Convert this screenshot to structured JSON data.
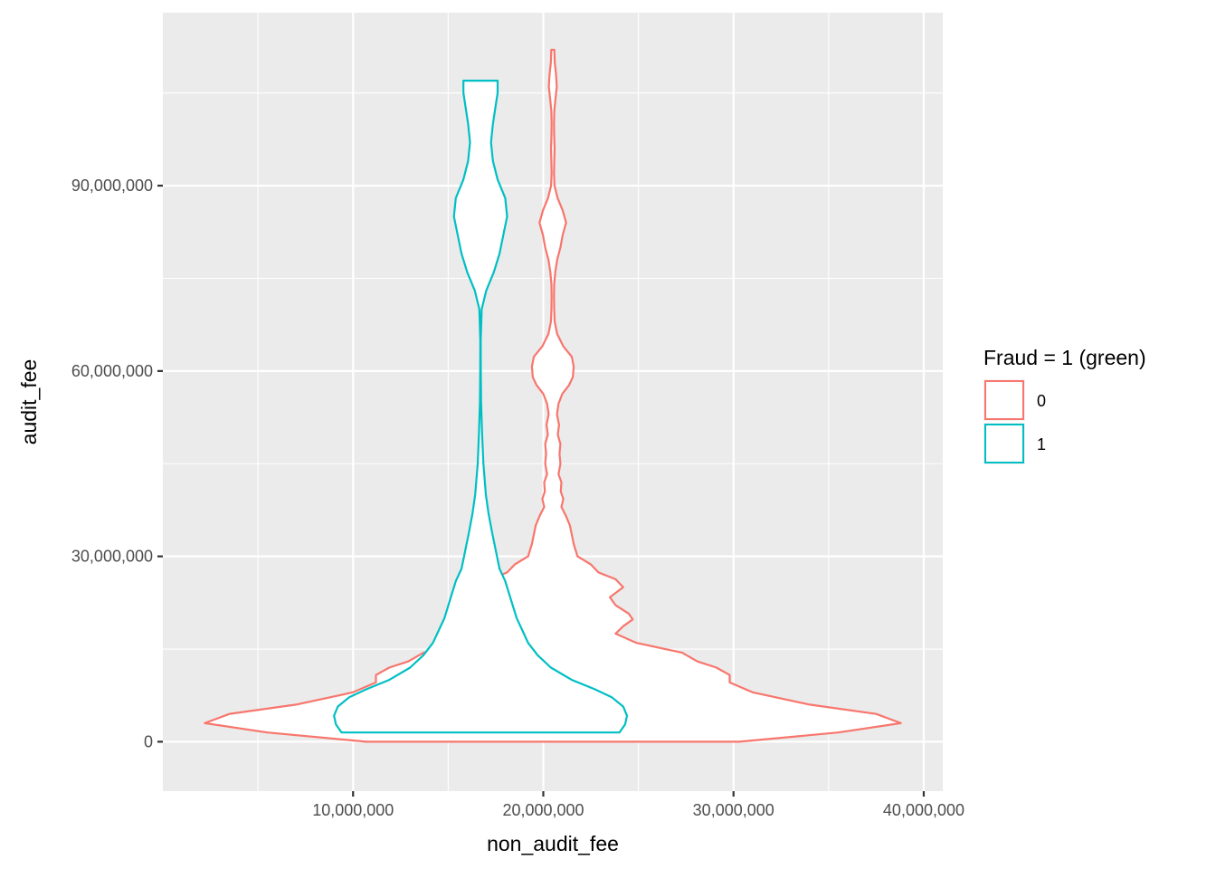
{
  "chart_data": {
    "type": "violin",
    "xlabel": "non_audit_fee",
    "ylabel": "audit_fee",
    "xlim": [
      0,
      41000000
    ],
    "ylim": [
      -8000000,
      118000000
    ],
    "x_ticks": [
      10000000,
      20000000,
      30000000,
      40000000
    ],
    "x_tick_labels": [
      "10,000,000",
      "20,000,000",
      "30,000,000",
      "40,000,000"
    ],
    "y_ticks": [
      0,
      30000000,
      60000000,
      90000000
    ],
    "y_tick_labels": [
      "0",
      "30,000,000",
      "60,000,000",
      "90,000,000"
    ],
    "grid": true,
    "legend": {
      "title": "Fraud = 1 (green)",
      "placement": "right",
      "entries": [
        {
          "label": "0",
          "color": "#F8766D"
        },
        {
          "label": "1",
          "color": "#00BFC4"
        }
      ]
    },
    "series": [
      {
        "name": "0",
        "color": "#F8766D",
        "center": 20500000,
        "profile": [
          [
            0,
            9800000
          ],
          [
            1500000,
            15000000
          ],
          [
            3000000,
            18300000
          ],
          [
            4500000,
            17000000
          ],
          [
            6000000,
            13500000
          ],
          [
            8000000,
            10500000
          ],
          [
            9600000,
            9300000
          ],
          [
            10800000,
            9300000
          ],
          [
            12000000,
            8600000
          ],
          [
            13000000,
            7600000
          ],
          [
            14400000,
            6800000
          ],
          [
            16000000,
            4400000
          ],
          [
            17500000,
            3300000
          ],
          [
            18700000,
            3700000
          ],
          [
            19800000,
            4200000
          ],
          [
            20700000,
            4000000
          ],
          [
            22100000,
            3300000
          ],
          [
            23400000,
            3000000
          ],
          [
            25000000,
            3700000
          ],
          [
            26300000,
            3300000
          ],
          [
            27400000,
            2400000
          ],
          [
            28700000,
            2000000
          ],
          [
            30000000,
            1300000
          ],
          [
            32000000,
            1100000
          ],
          [
            33500000,
            1000000
          ],
          [
            35000000,
            900000
          ],
          [
            36500000,
            700000
          ],
          [
            38000000,
            450000
          ],
          [
            39300000,
            550000
          ],
          [
            40500000,
            420000
          ],
          [
            42000000,
            450000
          ],
          [
            43300000,
            300000
          ],
          [
            45000000,
            400000
          ],
          [
            46600000,
            350000
          ],
          [
            48200000,
            400000
          ],
          [
            49700000,
            260000
          ],
          [
            51300000,
            330000
          ],
          [
            53000000,
            220000
          ],
          [
            54700000,
            300000
          ],
          [
            56300000,
            500000
          ],
          [
            57700000,
            850000
          ],
          [
            59000000,
            1050000
          ],
          [
            60700000,
            1100000
          ],
          [
            62300000,
            1000000
          ],
          [
            64000000,
            550000
          ],
          [
            66000000,
            230000
          ],
          [
            68000000,
            100000
          ],
          [
            70000000,
            70000
          ],
          [
            72000000,
            60000
          ],
          [
            74000000,
            70000
          ],
          [
            76000000,
            130000
          ],
          [
            78000000,
            230000
          ],
          [
            80000000,
            400000
          ],
          [
            82000000,
            520000
          ],
          [
            84000000,
            700000
          ],
          [
            86000000,
            520000
          ],
          [
            88000000,
            250000
          ],
          [
            90000000,
            90000
          ],
          [
            92000000,
            60000
          ],
          [
            94000000,
            75000
          ],
          [
            96000000,
            95000
          ],
          [
            98000000,
            70000
          ],
          [
            100000000,
            60000
          ],
          [
            102000000,
            75000
          ],
          [
            104000000,
            140000
          ],
          [
            106000000,
            210000
          ],
          [
            108000000,
            170000
          ],
          [
            110000000,
            100000
          ],
          [
            112000000,
            80000
          ]
        ]
      },
      {
        "name": "1",
        "color": "#00BFC4",
        "center": 16700000,
        "profile": [
          [
            1500000,
            7300000
          ],
          [
            2800000,
            7600000
          ],
          [
            4200000,
            7700000
          ],
          [
            5700000,
            7500000
          ],
          [
            7200000,
            6900000
          ],
          [
            8500000,
            6000000
          ],
          [
            10000000,
            4800000
          ],
          [
            12000000,
            3700000
          ],
          [
            14000000,
            3000000
          ],
          [
            16000000,
            2500000
          ],
          [
            18000000,
            2200000
          ],
          [
            20000000,
            1900000
          ],
          [
            22000000,
            1700000
          ],
          [
            24000000,
            1500000
          ],
          [
            26000000,
            1300000
          ],
          [
            28000000,
            1000000
          ],
          [
            31000000,
            800000
          ],
          [
            34000000,
            600000
          ],
          [
            37000000,
            420000
          ],
          [
            40000000,
            280000
          ],
          [
            45000000,
            150000
          ],
          [
            50000000,
            80000
          ],
          [
            55000000,
            30000
          ],
          [
            60000000,
            15000
          ],
          [
            65000000,
            10000
          ],
          [
            70000000,
            60000
          ],
          [
            73000000,
            300000
          ],
          [
            76000000,
            700000
          ],
          [
            79000000,
            1000000
          ],
          [
            82000000,
            1200000
          ],
          [
            85000000,
            1400000
          ],
          [
            88000000,
            1300000
          ],
          [
            91000000,
            900000
          ],
          [
            94000000,
            650000
          ],
          [
            97000000,
            550000
          ],
          [
            100000000,
            650000
          ],
          [
            103000000,
            800000
          ],
          [
            105000000,
            900000
          ],
          [
            107000000,
            900000
          ]
        ]
      }
    ]
  }
}
